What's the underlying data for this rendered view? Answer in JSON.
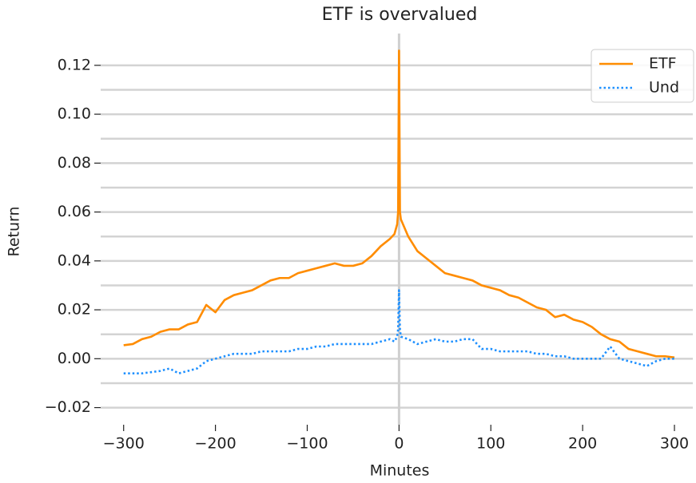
{
  "chart_data": {
    "type": "line",
    "title": "ETF is overvalued",
    "x_label": "Minutes",
    "y_label": "Return",
    "x": [
      -300,
      -290,
      -280,
      -270,
      -260,
      -250,
      -240,
      -230,
      -220,
      -210,
      -200,
      -190,
      -180,
      -170,
      -160,
      -150,
      -140,
      -130,
      -120,
      -110,
      -100,
      -90,
      -80,
      -70,
      -60,
      -50,
      -40,
      -30,
      -20,
      -10,
      -5,
      -2,
      -1,
      0,
      1,
      2,
      10,
      20,
      30,
      40,
      50,
      60,
      70,
      80,
      90,
      100,
      110,
      120,
      130,
      140,
      150,
      160,
      170,
      180,
      190,
      200,
      210,
      220,
      230,
      240,
      250,
      260,
      270,
      280,
      290,
      300
    ],
    "series": [
      {
        "name": "ETF",
        "color": "#ff8c00",
        "dash": "solid",
        "values": [
          0.0055,
          0.006,
          0.008,
          0.009,
          0.011,
          0.012,
          0.012,
          0.014,
          0.015,
          0.022,
          0.019,
          0.024,
          0.026,
          0.027,
          0.028,
          0.03,
          0.032,
          0.033,
          0.033,
          0.035,
          0.036,
          0.037,
          0.038,
          0.039,
          0.038,
          0.038,
          0.039,
          0.042,
          0.046,
          0.049,
          0.051,
          0.055,
          0.06,
          0.126,
          0.06,
          0.057,
          0.05,
          0.044,
          0.041,
          0.038,
          0.035,
          0.034,
          0.033,
          0.032,
          0.03,
          0.029,
          0.028,
          0.026,
          0.025,
          0.023,
          0.021,
          0.02,
          0.017,
          0.018,
          0.016,
          0.015,
          0.013,
          0.01,
          0.008,
          0.007,
          0.004,
          0.003,
          0.002,
          0.001,
          0.001,
          0.0005
        ]
      },
      {
        "name": "Und",
        "color": "#1e90ff",
        "dash": "dotted",
        "values": [
          -0.006,
          -0.006,
          -0.006,
          -0.0055,
          -0.005,
          -0.004,
          -0.006,
          -0.005,
          -0.004,
          -0.001,
          0.0,
          0.001,
          0.002,
          0.002,
          0.002,
          0.003,
          0.003,
          0.003,
          0.003,
          0.004,
          0.004,
          0.005,
          0.005,
          0.006,
          0.006,
          0.006,
          0.006,
          0.006,
          0.007,
          0.008,
          0.007,
          0.009,
          0.012,
          0.028,
          0.012,
          0.009,
          0.008,
          0.006,
          0.007,
          0.008,
          0.007,
          0.007,
          0.008,
          0.008,
          0.004,
          0.004,
          0.003,
          0.003,
          0.003,
          0.003,
          0.002,
          0.002,
          0.001,
          0.001,
          0.0,
          0.0,
          0.0,
          0.0,
          0.005,
          0.0,
          -0.001,
          -0.002,
          -0.003,
          -0.001,
          0.0,
          0.0
        ]
      }
    ],
    "xlim": [
      -325,
      320
    ],
    "ylim": [
      -0.027,
      0.133
    ],
    "xticks": [
      {
        "value": -300,
        "label": "−300"
      },
      {
        "value": -200,
        "label": "−200"
      },
      {
        "value": -100,
        "label": "−100"
      },
      0,
      100,
      200,
      300
    ],
    "yticks": [
      {
        "value": -0.02,
        "label": "−0.02"
      },
      {
        "value": 0,
        "label": "0.00"
      },
      0.02,
      0.04,
      0.06,
      0.08,
      {
        "value": 0.1,
        "label": "0.10"
      },
      0.12
    ],
    "grid_lines_y": [
      -0.02,
      -0.01,
      0,
      0.01,
      0.02,
      0.03,
      0.04,
      0.05,
      0.06,
      0.07,
      0.08,
      0.09,
      0.1,
      0.11,
      0.12
    ],
    "vline_x": 0,
    "legend": "upper right"
  }
}
